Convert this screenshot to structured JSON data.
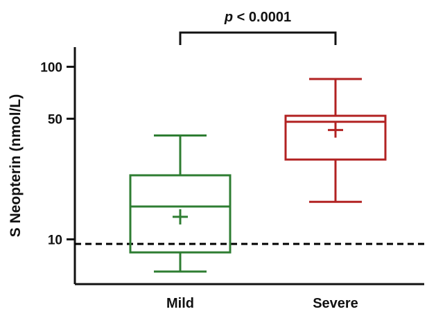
{
  "chart_data": {
    "type": "box",
    "ylabel": "S Neopterin (nmol/L)",
    "yscale": "log",
    "ylim": [
      5.5,
      130
    ],
    "yticks": [
      10,
      50,
      100
    ],
    "ytick_labels": [
      "10",
      "50",
      "100"
    ],
    "categories": [
      "Mild",
      "Severe"
    ],
    "boxes": [
      {
        "category": "Mild",
        "color": "#2e7d32",
        "whisker_low": 6.5,
        "q1": 8.4,
        "median": 15.5,
        "q3": 23.5,
        "whisker_high": 40,
        "mean": 13.5
      },
      {
        "category": "Severe",
        "color": "#b22222",
        "whisker_low": 16.5,
        "q1": 29,
        "median": 48,
        "q3": 52,
        "whisker_high": 85,
        "mean": 43
      }
    ],
    "reference_line": {
      "y": 9.4,
      "style": "dashed",
      "color": "#000000"
    },
    "annotation": {
      "text_italic": "p",
      "text": " < 0.0001",
      "between": [
        "Mild",
        "Severe"
      ]
    }
  }
}
